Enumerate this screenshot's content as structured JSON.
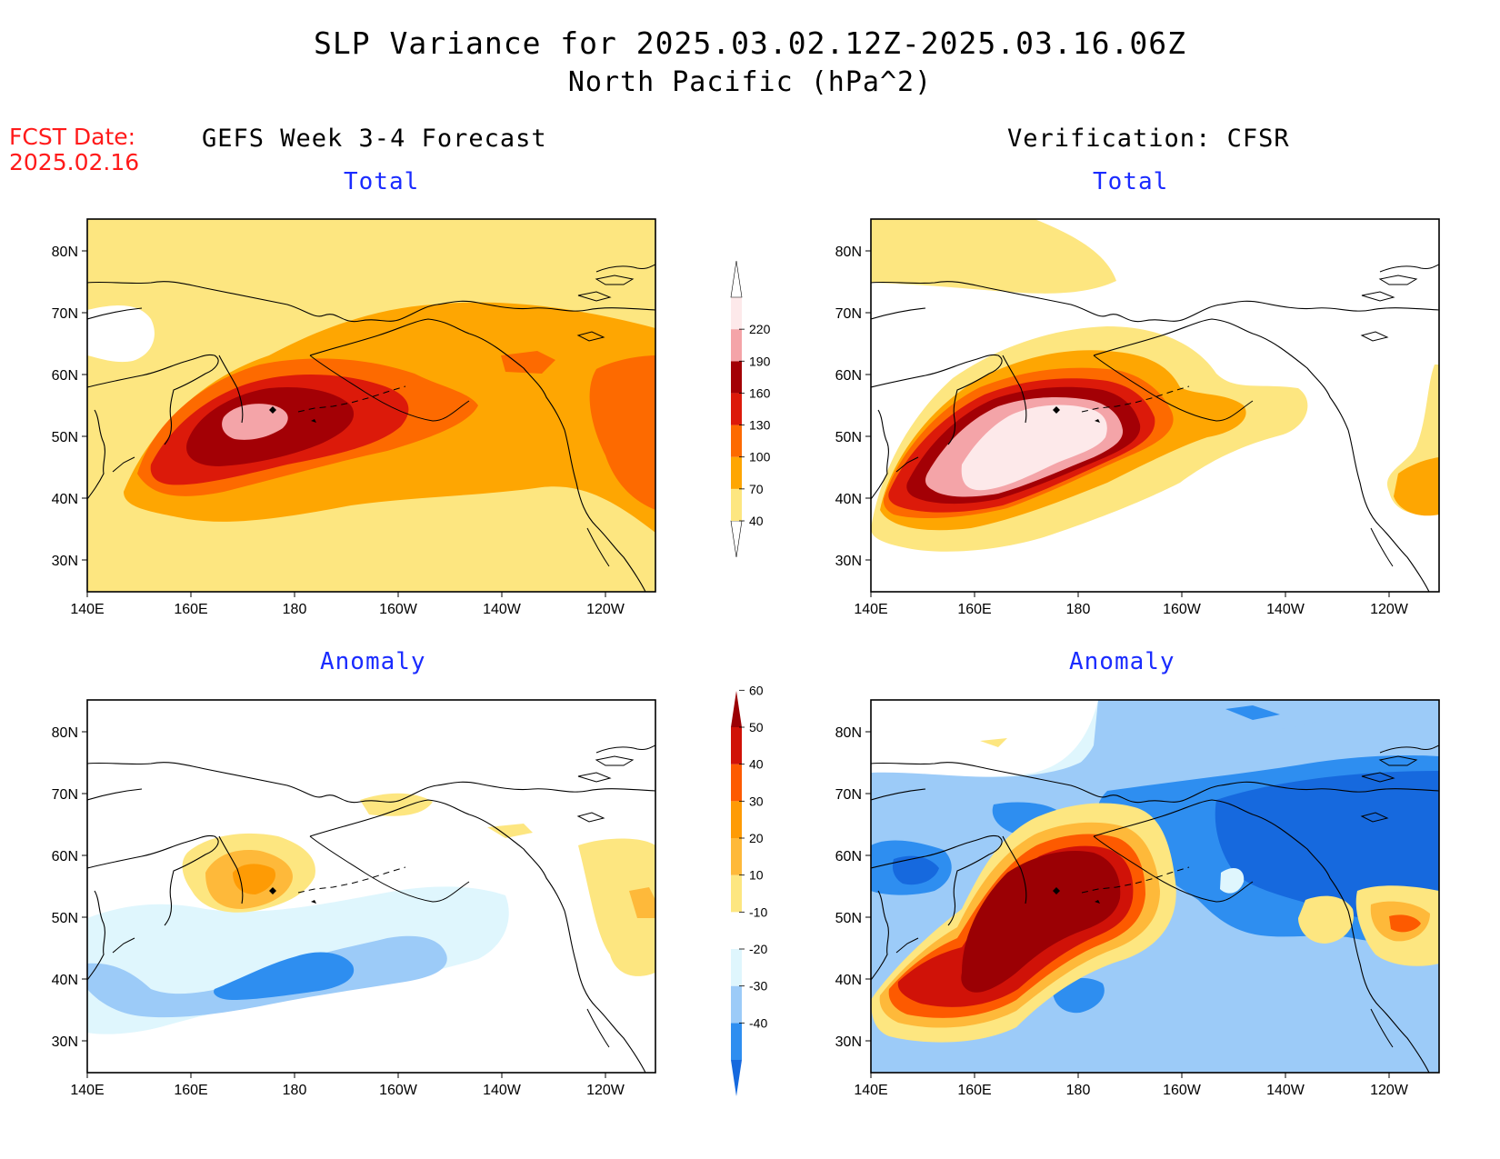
{
  "title": {
    "line1": "SLP Variance for 2025.03.02.12Z-2025.03.16.06Z",
    "line2": "North Pacific (hPa^2)"
  },
  "fcst_date": {
    "label": "FCST Date:",
    "value": "2025.02.16"
  },
  "columns": {
    "left": "GEFS Week 3-4 Forecast",
    "right": "Verification: CFSR"
  },
  "panels": {
    "top_left": "Total",
    "top_right": "Total",
    "bottom_left": "Anomaly",
    "bottom_right": "Anomaly"
  },
  "axes": {
    "lat_labels": [
      "80N",
      "70N",
      "60N",
      "50N",
      "40N",
      "30N"
    ],
    "lon_labels": [
      "140E",
      "160E",
      "180",
      "160W",
      "140W",
      "120W"
    ]
  },
  "legend_total": {
    "levels": [
      "40",
      "70",
      "100",
      "130",
      "160",
      "190",
      "220"
    ],
    "colors": [
      "#fde680",
      "#fea602",
      "#fd6a00",
      "#dc1a0a",
      "#a30005",
      "#f4a4a8",
      "#fde9ea"
    ]
  },
  "legend_anomaly": {
    "levels": [
      "-40",
      "-30",
      "-20",
      "-10",
      "10",
      "20",
      "30",
      "40",
      "50",
      "60"
    ],
    "colors": [
      "#1669de",
      "#2e8ef0",
      "#9ccbf8",
      "#dff6fd",
      "#ffffff",
      "#fde680",
      "#feb93a",
      "#fe9b05",
      "#fd5a00",
      "#d01208",
      "#9b0004"
    ]
  },
  "map_colors": {
    "t1": "#fde680",
    "t2": "#fea602",
    "t3": "#fd6a00",
    "t4": "#dc1a0a",
    "t5": "#a30005",
    "t6": "#f4a4a8",
    "t7": "#fde9ea",
    "an4": "#1669de",
    "an3": "#2e8ef0",
    "an2": "#9ccbf8",
    "an1": "#dff6fd",
    "ap1": "#fde680",
    "ap2": "#feb93a",
    "ap3": "#fe9b05",
    "ap4": "#fd5a00",
    "ap5": "#d01208",
    "ap6": "#9b0004"
  }
}
